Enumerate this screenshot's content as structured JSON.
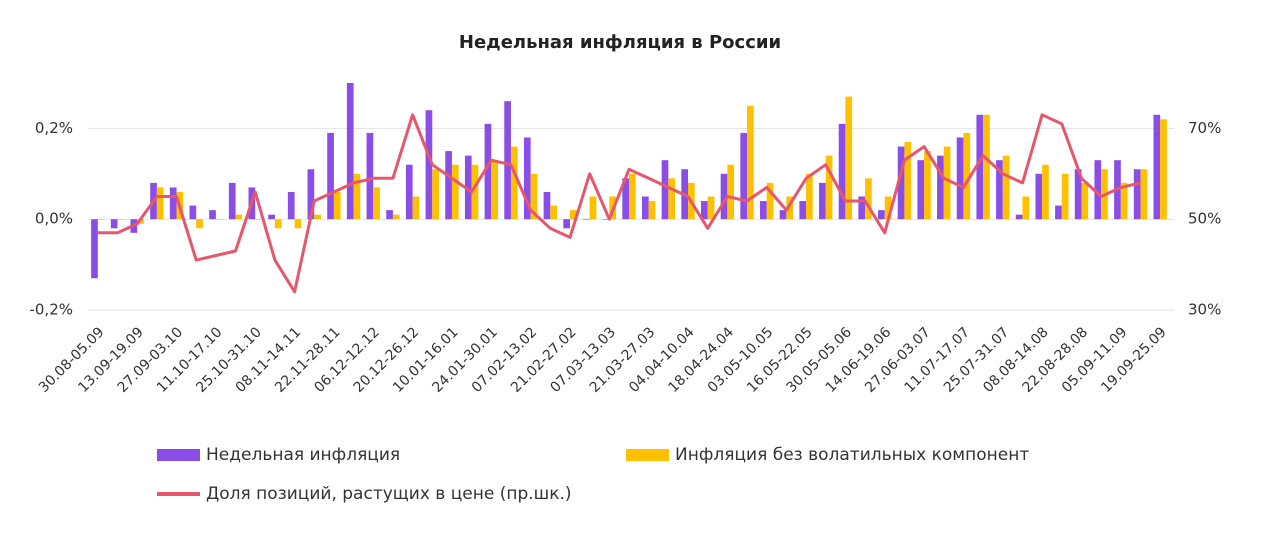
{
  "chart_data": {
    "type": "bar",
    "title": "Недельная инфляция в России",
    "categories": [
      "30.08-05.09",
      null,
      "13.09-19.09",
      null,
      "27.09-03.10",
      null,
      "11.10-17.10",
      null,
      "25.10-31.10",
      null,
      "08.11-14.11",
      null,
      "22.11-28.11",
      null,
      "06.12-12.12",
      null,
      "20.12-26.12",
      null,
      "10.01-16.01",
      null,
      "24.01-30.01",
      null,
      "07.02-13.02",
      null,
      "21.02-27.02",
      null,
      "07.03-13.03",
      null,
      "21.03-27.03",
      null,
      "04.04-10.04",
      null,
      "18.04-24.04",
      null,
      "03.05-10.05",
      null,
      "16.05-22.05",
      null,
      "30.05-05.06",
      null,
      "14.06-19.06",
      null,
      "27.06-03.07",
      null,
      "11.07-17.07",
      null,
      "25.07-31.07",
      null,
      "08.08-14.08",
      null,
      "22.08-28.08",
      null,
      "05.09-11.09",
      null,
      "19.09-25.09"
    ],
    "series": [
      {
        "name": "Недельная инфляция",
        "type": "bar",
        "color": "#8a4de8",
        "values": [
          -0.13,
          -0.02,
          -0.03,
          0.08,
          0.07,
          0.03,
          0.02,
          0.08,
          0.07,
          0.01,
          0.06,
          0.11,
          0.19,
          0.3,
          0.19,
          0.02,
          0.12,
          0.24,
          0.15,
          0.14,
          0.21,
          0.26,
          0.18,
          0.06,
          -0.02,
          0.0,
          0.0,
          0.09,
          0.05,
          0.13,
          0.11,
          0.04,
          0.1,
          0.19,
          0.04,
          0.02,
          0.04,
          0.08,
          0.21,
          0.05,
          0.02,
          0.16,
          0.13,
          0.14,
          0.18,
          0.23,
          0.13,
          0.01,
          0.1,
          0.03,
          0.11,
          0.13,
          0.13,
          0.11,
          0.23
        ]
      },
      {
        "name": "Инфляция без волатильных компонент",
        "type": "bar",
        "color": "#ffc000",
        "values": [
          0.0,
          0.0,
          -0.01,
          0.07,
          0.06,
          -0.02,
          0.0,
          0.01,
          0.0,
          -0.02,
          -0.02,
          0.01,
          0.06,
          0.1,
          0.07,
          0.01,
          0.05,
          0.11,
          0.12,
          0.12,
          0.13,
          0.16,
          0.1,
          0.03,
          0.02,
          0.05,
          0.05,
          0.1,
          0.04,
          0.09,
          0.08,
          0.05,
          0.12,
          0.25,
          0.08,
          0.05,
          0.1,
          0.14,
          0.27,
          0.09,
          0.05,
          0.17,
          0.15,
          0.16,
          0.19,
          0.23,
          0.14,
          0.05,
          0.12,
          0.1,
          0.08,
          0.11,
          0.08,
          0.11,
          0.22
        ]
      },
      {
        "name": "Доля позиций, растущих в цене (пр.шк.)",
        "type": "line",
        "axis": "y2",
        "color": "#e8566e",
        "values": [
          47,
          47,
          49,
          55,
          55,
          41,
          42,
          43,
          56,
          41,
          34,
          54,
          56,
          58,
          59,
          59,
          73,
          62,
          59,
          56,
          63,
          62,
          52,
          48,
          46,
          60,
          50,
          61,
          59,
          57,
          55,
          48,
          55,
          54,
          57,
          52,
          59,
          62,
          54,
          54,
          47,
          63,
          66,
          59,
          57,
          64,
          60,
          58,
          73,
          71,
          59,
          55,
          57,
          58,
          null
        ]
      }
    ],
    "ylim": [
      -0.2,
      0.3
    ],
    "yticks": [
      {
        "value": 0.2,
        "label": "0,2%"
      },
      {
        "value": 0.0,
        "label": "0,0%"
      },
      {
        "value": -0.2,
        "label": "-0,2%"
      }
    ],
    "y2lim": [
      30,
      80
    ],
    "y2ticks": [
      {
        "value": 70,
        "label": "70%"
      },
      {
        "value": 50,
        "label": "50%"
      },
      {
        "value": 30,
        "label": "30%"
      }
    ],
    "grid": true
  }
}
